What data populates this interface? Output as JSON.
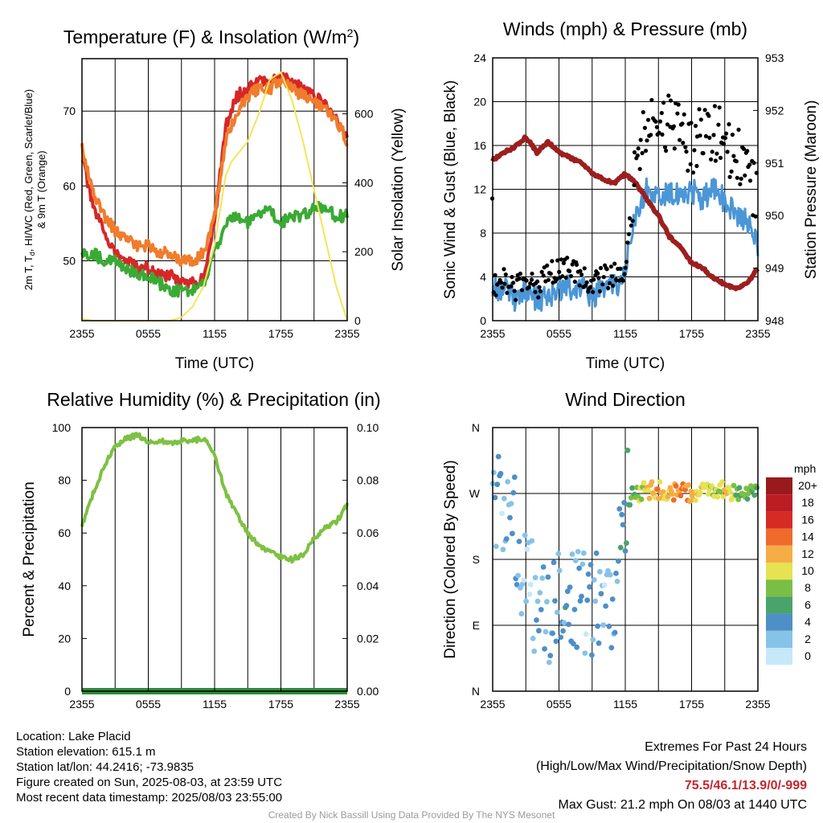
{
  "panels": {
    "temperature": {
      "title_main": "Temperature (F) & Insolation (W/m",
      "title_sup": "2",
      "title_close": ")",
      "ylabel_left_line1_parts": [
        "2m T, T",
        "d",
        ", HI/WC (Red, Green, Scarlet/Blue)"
      ],
      "ylabel_left_line2": "& 9m T (Orange)",
      "ylabel_right": "Solar Insolation (Yellow)",
      "xlabel": "Time (UTC)",
      "left_ticks": [
        "50",
        "60",
        "70"
      ],
      "right_ticks": [
        "0",
        "200",
        "400",
        "600"
      ],
      "x_ticks": [
        "2355",
        "0555",
        "1155",
        "1755",
        "2355"
      ]
    },
    "winds": {
      "title": "Winds (mph) & Pressure (mb)",
      "ylabel_left": "Sonic Wind & Gust (Blue, Black)",
      "ylabel_right": "Station Pressure (Maroon)",
      "xlabel": "Time (UTC)",
      "left_ticks": [
        "0",
        "4",
        "8",
        "12",
        "16",
        "20",
        "24"
      ],
      "right_ticks": [
        "948",
        "949",
        "950",
        "951",
        "952",
        "953"
      ],
      "x_ticks": [
        "2355",
        "0555",
        "1155",
        "1755",
        "2355"
      ]
    },
    "humidity": {
      "title": "Relative Humidity (%) & Precipitation (in)",
      "ylabel_left": "Percent & Precipitation",
      "left_ticks": [
        "0",
        "20",
        "40",
        "60",
        "80",
        "100"
      ],
      "right_ticks": [
        "0.00",
        "0.02",
        "0.04",
        "0.06",
        "0.08",
        "0.10"
      ],
      "x_ticks": [
        "2355",
        "0555",
        "1155",
        "1755",
        "2355"
      ]
    },
    "direction": {
      "title": "Wind Direction",
      "ylabel_left": "Direction (Colored By Speed)",
      "y_ticks": [
        "N",
        "E",
        "S",
        "W",
        "N"
      ],
      "x_ticks": [
        "2355",
        "0555",
        "1155",
        "1755",
        "2355"
      ],
      "colorbar_title": "mph",
      "colorbar_labels": [
        "0",
        "2",
        "4",
        "6",
        "8",
        "10",
        "12",
        "14",
        "16",
        "18",
        "20+"
      ],
      "colorbar_colors": [
        "#c6e9f9",
        "#86c3e8",
        "#4e8fc7",
        "#4aa36a",
        "#79bf45",
        "#e6e252",
        "#f5ad46",
        "#ef6a2b",
        "#d62b25",
        "#bc1c24",
        "#991a1d"
      ]
    }
  },
  "info": {
    "location": "Location: Lake Placid",
    "elevation": "Station elevation: 615.1 m",
    "latlon": "Station lat/lon: 44.2416; -73.9835",
    "created": "Figure created on Sun, 2025-08-03, at 23:59 UTC",
    "recent": "Most recent data timestamp: 2025/08/03 23:55:00"
  },
  "extremes": {
    "title": "Extremes For Past 24 Hours",
    "subtitle": "(High/Low/Max Wind/Precipitation/Snow Depth)",
    "values": "75.5/46.1/13.9/0/-999",
    "values_color": "#c0282d",
    "gust": "Max Gust: 21.2 mph On 08/03 at 1440 UTC"
  },
  "credit": "Created By Nick Bassill Using Data Provided By The NYS Mesonet",
  "chart_data": [
    {
      "type": "line",
      "x_unit": "hours since 2355 UTC",
      "x_ticks": [
        0,
        6,
        12,
        18,
        24
      ],
      "ylim": [
        42,
        77
      ],
      "ylim_right": [
        0,
        760
      ],
      "series": [
        {
          "color": "#d62728",
          "x": [
            0,
            1,
            2,
            3,
            4,
            5,
            6,
            7,
            8,
            9,
            10,
            11,
            12,
            13,
            14,
            15,
            16,
            17,
            18,
            19,
            20,
            21,
            22,
            23,
            24
          ],
          "y": [
            64,
            57,
            54,
            51,
            50,
            49,
            49,
            48,
            48,
            47,
            47,
            48,
            55,
            68,
            72,
            73,
            74,
            74,
            75,
            74,
            73,
            72,
            71,
            69,
            66
          ]
        },
        {
          "color": "#3aaa35",
          "x": [
            0,
            1,
            2,
            3,
            4,
            5,
            6,
            7,
            8,
            9,
            10,
            11,
            12,
            13,
            14,
            15,
            16,
            17,
            18,
            19,
            20,
            21,
            22,
            23,
            24
          ],
          "y": [
            51,
            51,
            50,
            50,
            49,
            48,
            48,
            47,
            46,
            46,
            46,
            47,
            51,
            55,
            56,
            55,
            56,
            57,
            55,
            56,
            56,
            57,
            57,
            56,
            56
          ]
        },
        {
          "color": "#f07c2c",
          "x": [
            0,
            1,
            2,
            3,
            4,
            5,
            6,
            7,
            8,
            9,
            10,
            11,
            12,
            13,
            14,
            15,
            16,
            17,
            18,
            19,
            20,
            21,
            22,
            23,
            24
          ],
          "y": [
            65,
            59,
            56,
            54,
            53,
            52,
            52,
            51,
            51,
            50,
            50,
            51,
            56,
            66,
            70,
            72,
            73,
            73,
            74,
            73,
            72,
            71,
            70,
            69,
            66
          ]
        },
        {
          "color": "#f6e45a",
          "axis": "right",
          "x": [
            0,
            1,
            2,
            3,
            4,
            5,
            6,
            7,
            8,
            9,
            10,
            11,
            12,
            12.5,
            13,
            13.5,
            14,
            15,
            16,
            17,
            18,
            19,
            20,
            21,
            22,
            23,
            24
          ],
          "y": [
            5,
            0,
            0,
            0,
            0,
            0,
            0,
            0,
            0,
            10,
            40,
            100,
            220,
            320,
            420,
            460,
            480,
            520,
            600,
            700,
            720,
            640,
            520,
            380,
            240,
            100,
            0
          ]
        }
      ]
    },
    {
      "type": "scatter",
      "x_unit": "hours since 2355 UTC",
      "x_ticks": [
        0,
        6,
        12,
        18,
        24
      ],
      "ylim": [
        0,
        24
      ],
      "ylim_right": [
        948,
        953
      ],
      "series": [
        {
          "color": "#4c96d7",
          "x": [
            0,
            1,
            2,
            3,
            4,
            5,
            6,
            7,
            8,
            9,
            10,
            11,
            12,
            12.5,
            13,
            14,
            15,
            16,
            17,
            18,
            19,
            20,
            21,
            22,
            23,
            24
          ],
          "y": [
            3,
            3,
            2,
            3,
            2,
            2,
            3,
            3,
            3,
            2,
            3,
            3,
            4,
            8,
            10,
            12,
            11,
            12,
            11,
            12,
            11,
            12,
            11,
            10,
            9,
            7
          ]
        },
        {
          "color": "#000000",
          "x": [
            0,
            1,
            2,
            3,
            4,
            5,
            6,
            7,
            8,
            9,
            10,
            11,
            12,
            12.5,
            13,
            14,
            15,
            16,
            17,
            18,
            19,
            20,
            21,
            22,
            23,
            24
          ],
          "y": [
            3,
            4,
            3,
            4,
            3,
            4,
            5,
            5,
            4,
            3,
            4,
            4,
            5,
            10,
            14,
            19,
            17,
            18,
            17,
            16,
            18,
            17,
            17,
            15,
            13,
            11
          ]
        },
        {
          "color": "#9c1f1f",
          "axis": "right",
          "x": [
            0,
            1,
            2,
            3,
            4,
            5,
            6,
            7,
            8,
            9,
            10,
            11,
            12,
            13,
            14,
            15,
            16,
            17,
            18,
            19,
            20,
            21,
            22,
            23,
            24
          ],
          "y": [
            951.05,
            951.2,
            951.3,
            951.5,
            951.2,
            951.4,
            951.2,
            951.1,
            951.0,
            950.8,
            950.7,
            950.6,
            950.8,
            950.6,
            950.3,
            950.0,
            949.6,
            949.4,
            949.1,
            949.0,
            948.8,
            948.7,
            948.6,
            948.7,
            949.0
          ]
        }
      ]
    },
    {
      "type": "line",
      "x_unit": "hours since 2355 UTC",
      "x_ticks": [
        0,
        6,
        12,
        18,
        24
      ],
      "ylim": [
        0,
        100
      ],
      "ylim_right": [
        0,
        0.1
      ],
      "series": [
        {
          "color": "#7dc142",
          "x": [
            0,
            1,
            2,
            3,
            4,
            5,
            6,
            7,
            8,
            9,
            10,
            11,
            12,
            13,
            14,
            15,
            16,
            17,
            18,
            19,
            20,
            21,
            22,
            23,
            24
          ],
          "y": [
            63,
            75,
            85,
            93,
            96,
            97,
            95,
            95,
            94,
            95,
            95,
            96,
            90,
            75,
            67,
            60,
            55,
            53,
            51,
            50,
            52,
            58,
            62,
            64,
            71
          ]
        },
        {
          "color": "#2e8b3a",
          "axis": "right",
          "x": [
            0,
            24
          ],
          "y": [
            0,
            0
          ]
        }
      ]
    },
    {
      "type": "scatter",
      "x_unit": "hours since 2355 UTC",
      "x_ticks": [
        0,
        6,
        12,
        18,
        24
      ],
      "ylim": [
        0,
        360
      ],
      "y_tick_labels": [
        "N",
        "E",
        "S",
        "W",
        "N"
      ],
      "series": [
        {
          "color": "by speed",
          "x": [
            0,
            1,
            2,
            3,
            4,
            5,
            6,
            7,
            8,
            9,
            10,
            11,
            12,
            12.5,
            13,
            14,
            15,
            16,
            17,
            18,
            19,
            20,
            21,
            22,
            23,
            24
          ],
          "y": [
            250,
            260,
            230,
            140,
            110,
            100,
            120,
            130,
            125,
            115,
            130,
            120,
            260,
            265,
            270,
            275,
            275,
            270,
            275,
            270,
            272,
            278,
            275,
            270,
            272,
            275
          ],
          "speed": [
            3,
            2,
            4,
            1,
            2,
            3,
            3,
            4,
            2,
            3,
            2,
            3,
            5,
            7,
            8,
            10,
            12,
            11,
            13,
            12,
            10,
            9,
            11,
            8,
            7,
            7
          ]
        }
      ]
    }
  ]
}
